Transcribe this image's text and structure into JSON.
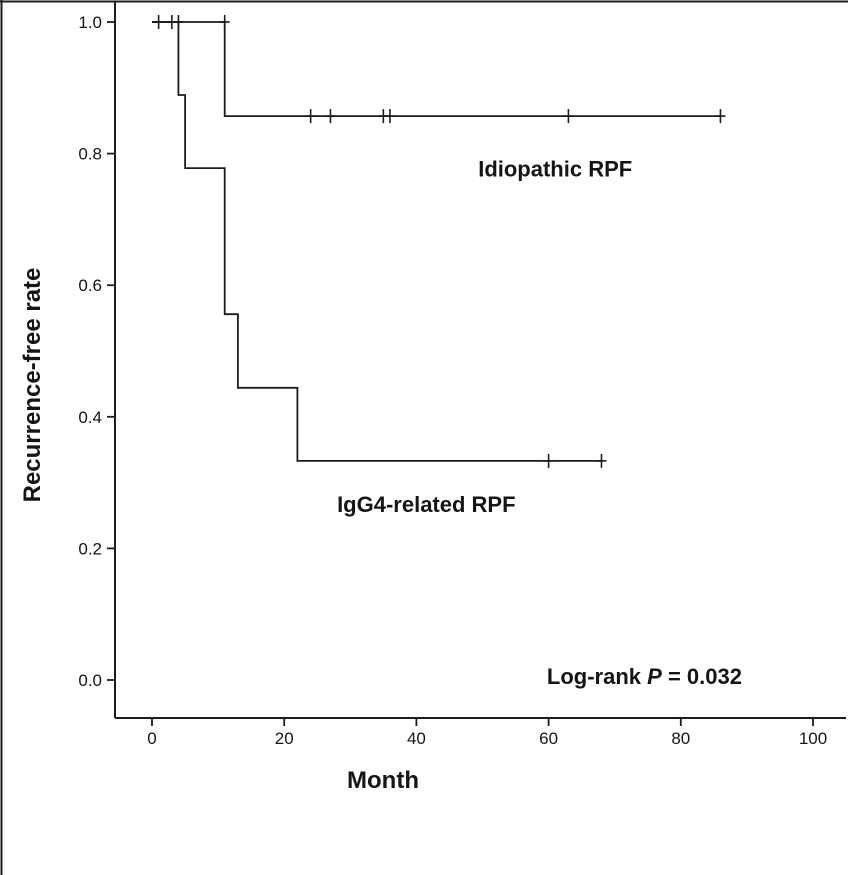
{
  "page": {
    "background": "#ffffff"
  },
  "chart_data": {
    "type": "line",
    "variant": "kaplan_meier_step_survival",
    "title": "",
    "xlabel": "Month",
    "ylabel": "Recurrence-free rate",
    "xlim": [
      0,
      100
    ],
    "ylim": [
      0.0,
      1.0
    ],
    "xticks": [
      "0",
      "20",
      "40",
      "60",
      "80",
      "100"
    ],
    "yticks": [
      "0.0",
      "0.2",
      "0.4",
      "0.6",
      "0.8",
      "1.0"
    ],
    "grid": false,
    "legend_position": "inline-labels",
    "line_color": "#1c1c1c",
    "series": [
      {
        "name": "Idiopathic RPF",
        "steps": [
          [
            0,
            1.0
          ],
          [
            11,
            0.857
          ]
        ],
        "end_time": 86,
        "censor_marks": [
          [
            1,
            1.0
          ],
          [
            3,
            1.0
          ],
          [
            4,
            1.0
          ],
          [
            11,
            1.0
          ],
          [
            24,
            0.857
          ],
          [
            27,
            0.857
          ],
          [
            35,
            0.857
          ],
          [
            36,
            0.857
          ],
          [
            63,
            0.857
          ],
          [
            86,
            0.857
          ]
        ],
        "label_pos": {
          "x": 61,
          "y": 0.765
        }
      },
      {
        "name": "IgG4-related RPF",
        "steps": [
          [
            0,
            1.0
          ],
          [
            4,
            0.889
          ],
          [
            5,
            0.778
          ],
          [
            11,
            0.556
          ],
          [
            13,
            0.444
          ],
          [
            22,
            0.333
          ]
        ],
        "end_time": 68,
        "censor_marks": [
          [
            60,
            0.333
          ],
          [
            68,
            0.333
          ]
        ],
        "label_pos": {
          "x": 41.5,
          "y": 0.255
        }
      }
    ],
    "stats_annotation": {
      "parts": [
        "Log-rank ",
        "P",
        " =  0.032"
      ],
      "pos": {
        "x": 74.5,
        "y": -0.006
      }
    }
  }
}
